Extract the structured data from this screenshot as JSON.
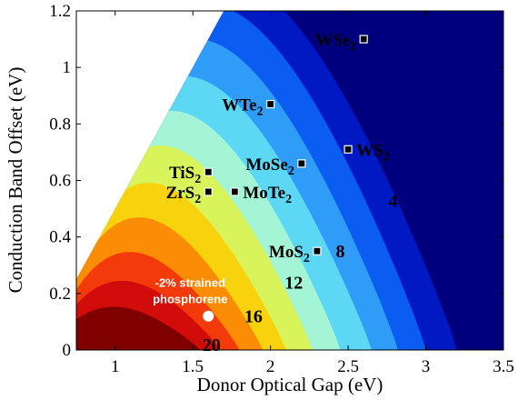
{
  "chart_data": {
    "type": "heatmap",
    "xlabel": "Donor Optical Gap (eV)",
    "ylabel": "Conduction Band Offset (eV)",
    "xlim": [
      0.75,
      3.5
    ],
    "ylim": [
      0,
      1.2
    ],
    "xticks": [
      "1",
      "1.5",
      "2",
      "2.5",
      "3",
      "3.5"
    ],
    "yticks": [
      "0",
      "0.2",
      "0.4",
      "0.6",
      "0.8",
      "1",
      "1.2"
    ],
    "grid": false,
    "contour_bands": [
      {
        "level": 0,
        "color": "#00007f",
        "peak": 1.3,
        "edge_at_zero": 3.5
      },
      {
        "level": 2,
        "color": "#0019c2",
        "peak": 1.3,
        "edge_at_zero": 3.2
      },
      {
        "level": 4,
        "color": "#0a5df0",
        "peak": 1.2,
        "edge_at_zero": 3.0
      },
      {
        "level": 6,
        "color": "#2f9cf7",
        "peak": 1.08,
        "edge_at_zero": 2.82
      },
      {
        "level": 8,
        "color": "#5cd8f5",
        "peak": 0.95,
        "edge_at_zero": 2.65
      },
      {
        "level": 10,
        "color": "#a4f5d6",
        "peak": 0.83,
        "edge_at_zero": 2.45
      },
      {
        "level": 12,
        "color": "#d8f45a",
        "peak": 0.71,
        "edge_at_zero": 2.27
      },
      {
        "level": 14,
        "color": "#f8d20c",
        "peak": 0.58,
        "edge_at_zero": 2.1
      },
      {
        "level": 16,
        "color": "#fb8c06",
        "peak": 0.46,
        "edge_at_zero": 1.95
      },
      {
        "level": 18,
        "color": "#f23a0a",
        "peak": 0.34,
        "edge_at_zero": 1.8
      },
      {
        "level": 20,
        "color": "#d20b0b",
        "peak": 0.24,
        "edge_at_zero": 1.68
      },
      {
        "level": 22,
        "color": "#800000",
        "peak": 0.15,
        "edge_at_zero": 1.55
      }
    ],
    "contour_labels": [
      {
        "text": "4",
        "x": 2.79,
        "y": 0.53
      },
      {
        "text": "8",
        "x": 2.45,
        "y": 0.35
      },
      {
        "text": "12",
        "x": 2.15,
        "y": 0.24
      },
      {
        "text": "16",
        "x": 1.89,
        "y": 0.12
      },
      {
        "text": "20",
        "x": 1.62,
        "y": 0.02
      }
    ],
    "points": [
      {
        "name": "WSe2",
        "label_main": "WSe",
        "label_sub": "2",
        "x": 2.6,
        "y": 1.1,
        "label_side": "left"
      },
      {
        "name": "WTe2",
        "label_main": "WTe",
        "label_sub": "2",
        "x": 2.0,
        "y": 0.87,
        "label_side": "left"
      },
      {
        "name": "WS2",
        "label_main": "WS",
        "label_sub": "2",
        "x": 2.5,
        "y": 0.71,
        "label_side": "right"
      },
      {
        "name": "MoSe2",
        "label_main": "MoSe",
        "label_sub": "2",
        "x": 2.2,
        "y": 0.66,
        "label_side": "left"
      },
      {
        "name": "TiS2",
        "label_main": "TiS",
        "label_sub": "2",
        "x": 1.6,
        "y": 0.63,
        "label_side": "left"
      },
      {
        "name": "ZrS2",
        "label_main": "ZrS",
        "label_sub": "2",
        "x": 1.6,
        "y": 0.56,
        "label_side": "left"
      },
      {
        "name": "MoTe2",
        "label_main": "MoTe",
        "label_sub": "2",
        "x": 1.77,
        "y": 0.56,
        "label_side": "right"
      },
      {
        "name": "MoS2",
        "label_main": "MoS",
        "label_sub": "2",
        "x": 2.3,
        "y": 0.35,
        "label_side": "left"
      }
    ],
    "highlight": {
      "label_line1": "-2% strained",
      "label_line2": "phosphorene",
      "x": 1.6,
      "y": 0.12,
      "color": "#ffffff"
    }
  }
}
